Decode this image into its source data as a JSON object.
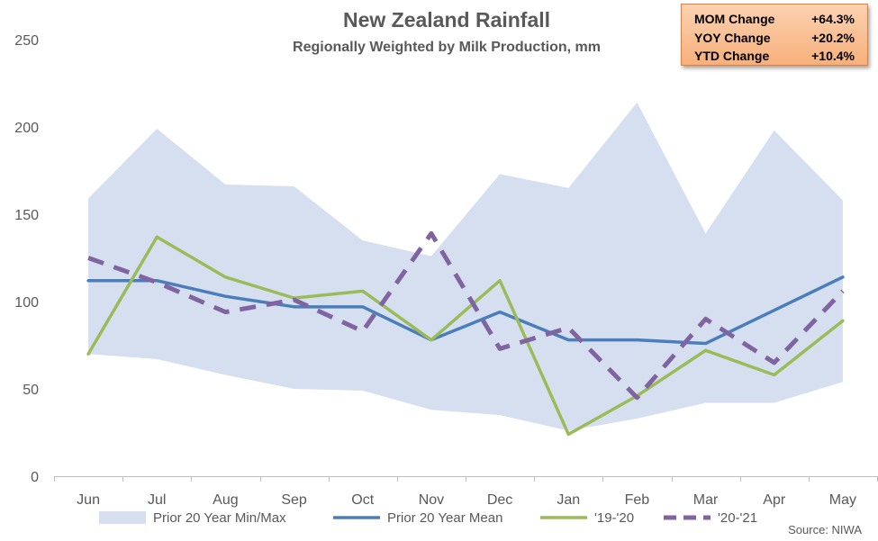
{
  "chart_data": {
    "type": "line",
    "title": "New Zealand Rainfall",
    "subtitle": "Regionally Weighted by Milk Production, mm",
    "categories": [
      "Jun",
      "Jul",
      "Aug",
      "Sep",
      "Oct",
      "Nov",
      "Dec",
      "Jan",
      "Feb",
      "Mar",
      "Apr",
      "May"
    ],
    "ylim": [
      0,
      250
    ],
    "yticks": [
      "0",
      "50",
      "100",
      "150",
      "200",
      "250"
    ],
    "grid": false,
    "legend_position": "bottom",
    "band": {
      "name": "Prior 20 Year Min/Max",
      "color": "#d6dff0",
      "min": [
        70,
        67,
        58,
        50,
        49,
        38,
        35,
        26,
        33,
        42,
        42,
        54
      ],
      "max": [
        159,
        199,
        167,
        166,
        135,
        126,
        173,
        165,
        214,
        139,
        198,
        158
      ]
    },
    "series": [
      {
        "name": "Prior 20 Year Mean",
        "color": "#4a7ebb",
        "style": "solid",
        "values": [
          112,
          112,
          103,
          97,
          97,
          78,
          94,
          78,
          78,
          76,
          95,
          114
        ]
      },
      {
        "name": "'19-'20",
        "color": "#9bbb59",
        "style": "solid",
        "values": [
          70,
          137,
          114,
          102,
          106,
          78,
          112,
          24,
          46,
          72,
          58,
          89
        ]
      },
      {
        "name": "'20-'21",
        "color": "#8064a2",
        "style": "dashed",
        "values": [
          125,
          111,
          94,
          101,
          83,
          139,
          73,
          85,
          45,
          90,
          65,
          106
        ]
      }
    ]
  },
  "stats": [
    {
      "label": "MOM Change",
      "value": "+64.3%"
    },
    {
      "label": "YOY Change",
      "value": "+20.2%"
    },
    {
      "label": "YTD Change",
      "value": "+10.4%"
    }
  ],
  "source": "Source: NIWA"
}
